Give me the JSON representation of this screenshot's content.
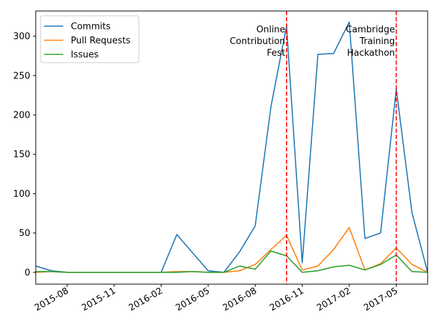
{
  "chart_data": {
    "type": "line",
    "title": "",
    "xlabel": "",
    "ylabel": "",
    "x": [
      "2015-06",
      "2015-07",
      "2015-08",
      "2015-09",
      "2015-10",
      "2015-11",
      "2015-12",
      "2016-01",
      "2016-02",
      "2016-03",
      "2016-04",
      "2016-05",
      "2016-06",
      "2016-07",
      "2016-08",
      "2016-09",
      "2016-10",
      "2016-11",
      "2016-12",
      "2017-01",
      "2017-02",
      "2017-03",
      "2017-04",
      "2017-05",
      "2017-06",
      "2017-07"
    ],
    "series": [
      {
        "name": "Commits",
        "color": "#1f77b4",
        "values": [
          8,
          2,
          0,
          0,
          0,
          0,
          0,
          0,
          0,
          48,
          25,
          2,
          0,
          26,
          59,
          210,
          313,
          12,
          277,
          278,
          318,
          43,
          50,
          233,
          76,
          0
        ]
      },
      {
        "name": "Pull Requests",
        "color": "#ff7f0e",
        "values": [
          0,
          1,
          0,
          0,
          0,
          0,
          0,
          0,
          0,
          1,
          1,
          0,
          0,
          2,
          10,
          29,
          47,
          3,
          8,
          29,
          57,
          3,
          11,
          31,
          10,
          0
        ]
      },
      {
        "name": "Issues",
        "color": "#2ca02c",
        "values": [
          1,
          1,
          0,
          0,
          0,
          0,
          0,
          0,
          0,
          0,
          1,
          0,
          0,
          8,
          4,
          27,
          21,
          0,
          2,
          7,
          9,
          3,
          10,
          22,
          1,
          0
        ]
      }
    ],
    "xlim": [
      "2015-06",
      "2017-07"
    ],
    "ylim": [
      -15,
      332
    ],
    "xticks": [
      {
        "x": "2015-08",
        "label": "2015-08"
      },
      {
        "x": "2015-11",
        "label": "2015-11"
      },
      {
        "x": "2016-02",
        "label": "2016-02"
      },
      {
        "x": "2016-05",
        "label": "2016-05"
      },
      {
        "x": "2016-08",
        "label": "2016-08"
      },
      {
        "x": "2016-11",
        "label": "2016-11"
      },
      {
        "x": "2017-02",
        "label": "2017-02"
      },
      {
        "x": "2017-05",
        "label": "2017-05"
      }
    ],
    "yticks": [
      0,
      50,
      100,
      150,
      200,
      250,
      300
    ],
    "events": [
      {
        "x": "2016-10",
        "color": "#ff0000",
        "lines": [
          "Online",
          "Contribution",
          "Fest"
        ]
      },
      {
        "x": "2017-05",
        "color": "#ff0000",
        "lines": [
          "Cambridge",
          "Training",
          "Hackathon"
        ]
      }
    ],
    "grid": false,
    "legend": "top-left"
  }
}
